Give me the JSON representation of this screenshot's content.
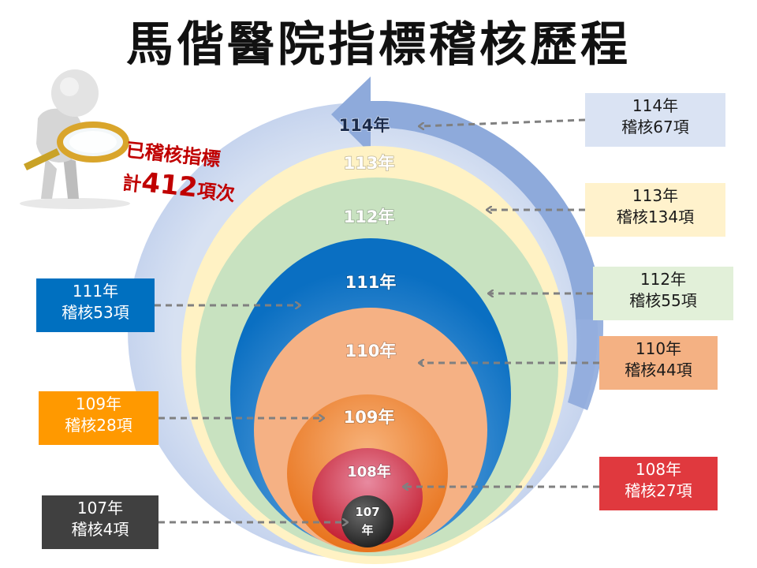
{
  "title": "馬偕醫院指標稽核歷程",
  "callout": {
    "prefix": "已稽核指標",
    "count_prefix": "計",
    "count": "412",
    "count_suffix": "項次"
  },
  "rings": [
    {
      "id": "114",
      "label": "114年"
    },
    {
      "id": "113",
      "label": "113年"
    },
    {
      "id": "112",
      "label": "112年"
    },
    {
      "id": "111",
      "label": "111年"
    },
    {
      "id": "110",
      "label": "110年"
    },
    {
      "id": "109",
      "label": "109年"
    },
    {
      "id": "108",
      "label": "108年"
    },
    {
      "id": "107",
      "label_line1": "107",
      "label_line2": "年"
    }
  ],
  "boxes": [
    {
      "id": "114",
      "year": "114年",
      "audit": "稽核67項",
      "bg": "#dae3f3",
      "fg": "#1a1a1a"
    },
    {
      "id": "113",
      "year": "113年",
      "audit": "稽核134項",
      "bg": "#fff2cc",
      "fg": "#1a1a1a"
    },
    {
      "id": "112",
      "year": "112年",
      "audit": "稽核55項",
      "bg": "#e2f0d9",
      "fg": "#1a1a1a"
    },
    {
      "id": "111",
      "year": "111年",
      "audit": "稽核53項",
      "bg": "#0070c0",
      "fg": "#ffffff"
    },
    {
      "id": "110",
      "year": "110年",
      "audit": "稽核44項",
      "bg": "#f4b183",
      "fg": "#1a1a1a"
    },
    {
      "id": "109",
      "year": "109年",
      "audit": "稽核28項",
      "bg": "#ff9900",
      "fg": "#ffffff"
    },
    {
      "id": "108",
      "year": "108年",
      "audit": "稽核27項",
      "bg": "#e0393e",
      "fg": "#ffffff"
    },
    {
      "id": "107",
      "year": "107年",
      "audit": "稽核4項",
      "bg": "#404040",
      "fg": "#ffffff"
    }
  ]
}
